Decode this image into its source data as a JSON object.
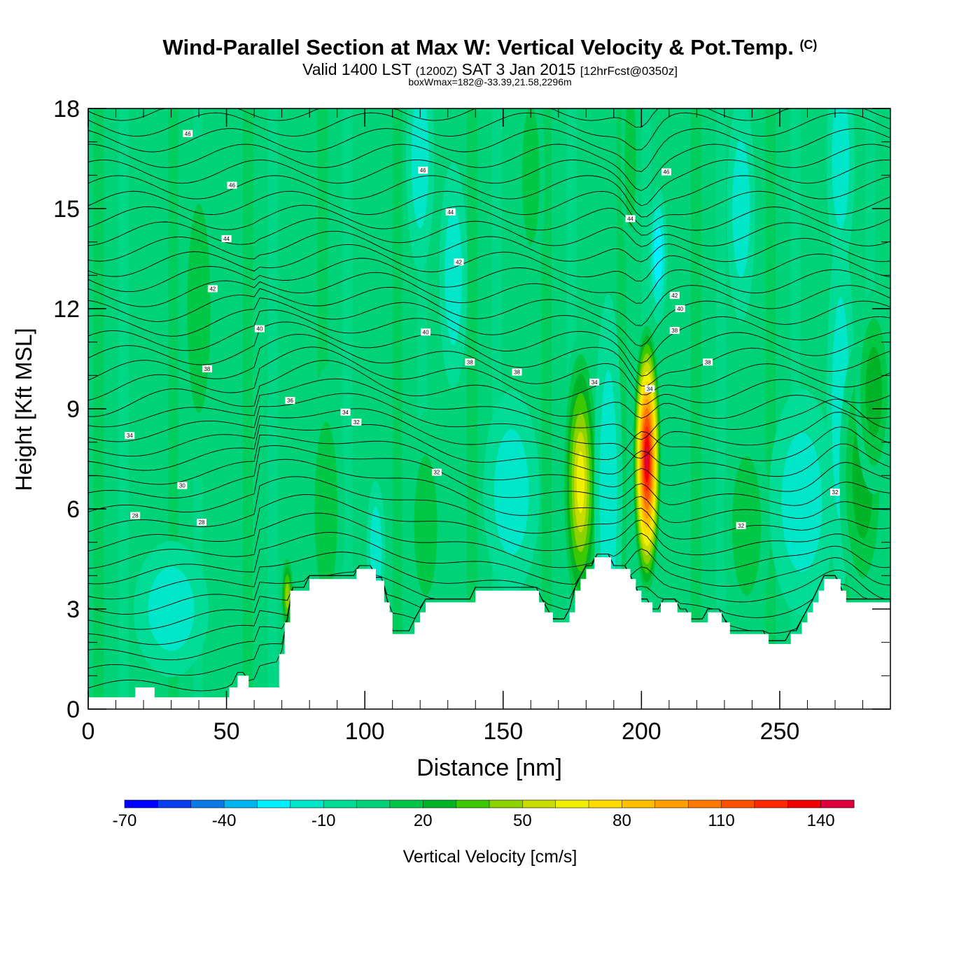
{
  "header": {
    "title": "Wind-Parallel Section at Max W: Vertical Velocity & Pot.Temp.",
    "copyright": "(C)",
    "valid_prefix": "Valid 1400 LST",
    "valid_utc": "(1200Z)",
    "valid_date": "SAT 3 Jan 2015",
    "forecast": "[12hrFcst@0350z]",
    "box_info": "boxWmax=182@-33.39,21.58,2296m"
  },
  "chart_data": {
    "type": "heatmap",
    "title": "Wind-Parallel Section at Max W: Vertical Velocity & Pot.Temp.",
    "xlabel": "Distance [nm]",
    "ylabel": "Height [Kft MSL]",
    "xlim": [
      0,
      290
    ],
    "ylim": [
      0,
      18
    ],
    "x_ticks": [
      0,
      50,
      100,
      150,
      200,
      250
    ],
    "y_ticks": [
      0,
      3,
      6,
      9,
      12,
      15,
      18
    ],
    "colorbar": {
      "label": "Vertical Velocity [cm/s]",
      "tick_labels": [
        "-70",
        "-40",
        "-10",
        "20",
        "50",
        "80",
        "110",
        "140"
      ],
      "levels": [
        -70,
        -60,
        -50,
        -40,
        -30,
        -20,
        -10,
        0,
        10,
        20,
        30,
        40,
        50,
        60,
        70,
        80,
        90,
        100,
        110,
        120,
        130,
        140,
        150
      ],
      "colors": [
        "#0000ff",
        "#0a3cf0",
        "#0a78e6",
        "#00b4f0",
        "#00f0ff",
        "#00e6c8",
        "#00dc96",
        "#00d278",
        "#00c846",
        "#00b428",
        "#3cc800",
        "#8cd200",
        "#c8dc00",
        "#f0f000",
        "#ffdc00",
        "#ffbe00",
        "#ffa000",
        "#ff7800",
        "#ff5000",
        "#ff2800",
        "#f00000",
        "#dc003c"
      ]
    },
    "background_level": 0,
    "terrain_kft": [
      [
        0,
        0.35
      ],
      [
        17,
        0.35
      ],
      [
        17,
        0.65
      ],
      [
        24,
        0.65
      ],
      [
        24,
        0.35
      ],
      [
        51,
        0.35
      ],
      [
        51,
        0.65
      ],
      [
        54,
        0.65
      ],
      [
        54,
        1.0
      ],
      [
        58,
        1.0
      ],
      [
        58,
        0.65
      ],
      [
        69,
        0.65
      ],
      [
        69,
        1.65
      ],
      [
        71,
        1.65
      ],
      [
        71,
        2.6
      ],
      [
        73,
        2.6
      ],
      [
        73,
        3.55
      ],
      [
        80,
        3.55
      ],
      [
        80,
        3.9
      ],
      [
        87,
        3.9
      ],
      [
        87,
        3.9
      ],
      [
        97,
        3.9
      ],
      [
        97,
        4.2
      ],
      [
        104,
        4.2
      ],
      [
        104,
        3.85
      ],
      [
        107,
        3.85
      ],
      [
        107,
        3.2
      ],
      [
        109,
        3.2
      ],
      [
        109,
        2.9
      ],
      [
        110,
        2.9
      ],
      [
        110,
        2.25
      ],
      [
        118,
        2.25
      ],
      [
        118,
        2.6
      ],
      [
        120,
        2.6
      ],
      [
        120,
        2.9
      ],
      [
        122,
        2.9
      ],
      [
        122,
        3.2
      ],
      [
        140,
        3.2
      ],
      [
        140,
        3.55
      ],
      [
        163,
        3.55
      ],
      [
        163,
        3.2
      ],
      [
        165,
        3.2
      ],
      [
        165,
        2.9
      ],
      [
        168,
        2.9
      ],
      [
        168,
        2.6
      ],
      [
        174,
        2.6
      ],
      [
        174,
        2.9
      ],
      [
        176,
        2.9
      ],
      [
        176,
        3.55
      ],
      [
        178,
        3.55
      ],
      [
        178,
        3.9
      ],
      [
        180,
        3.9
      ],
      [
        180,
        4.2
      ],
      [
        183,
        4.2
      ],
      [
        183,
        4.55
      ],
      [
        189,
        4.55
      ],
      [
        189,
        4.2
      ],
      [
        196,
        4.2
      ],
      [
        196,
        3.9
      ],
      [
        198,
        3.9
      ],
      [
        198,
        3.55
      ],
      [
        200,
        3.55
      ],
      [
        200,
        3.2
      ],
      [
        204,
        3.2
      ],
      [
        204,
        2.9
      ],
      [
        207,
        2.9
      ],
      [
        207,
        3.2
      ],
      [
        213,
        3.2
      ],
      [
        213,
        2.9
      ],
      [
        218,
        2.9
      ],
      [
        218,
        2.6
      ],
      [
        224,
        2.6
      ],
      [
        224,
        2.9
      ],
      [
        229,
        2.9
      ],
      [
        229,
        2.6
      ],
      [
        232,
        2.6
      ],
      [
        232,
        2.25
      ],
      [
        246,
        2.25
      ],
      [
        246,
        1.95
      ],
      [
        254,
        1.95
      ],
      [
        254,
        2.25
      ],
      [
        258,
        2.25
      ],
      [
        258,
        2.6
      ],
      [
        260,
        2.6
      ],
      [
        260,
        2.9
      ],
      [
        262,
        2.9
      ],
      [
        262,
        3.2
      ],
      [
        264,
        3.2
      ],
      [
        264,
        3.55
      ],
      [
        266,
        3.55
      ],
      [
        266,
        3.9
      ],
      [
        272,
        3.9
      ],
      [
        272,
        3.55
      ],
      [
        274,
        3.55
      ],
      [
        274,
        3.2
      ],
      [
        290,
        3.2
      ]
    ],
    "velocity_features": [
      {
        "x": 178,
        "y": 6.8,
        "sx": 4,
        "sy": 2.6,
        "value": 62
      },
      {
        "x": 202,
        "y": 7.5,
        "sx": 3.2,
        "sy": 2.5,
        "value": 150
      },
      {
        "x": 190,
        "y": 7.0,
        "sx": 1.8,
        "sy": 1.3,
        "value": -42
      },
      {
        "x": 270,
        "y": 7.5,
        "sx": 2.0,
        "sy": 1.4,
        "value": -50
      },
      {
        "x": 206,
        "y": 13.6,
        "sx": 2.0,
        "sy": 1.2,
        "value": -25
      },
      {
        "x": 72,
        "y": 3.4,
        "sx": 1.5,
        "sy": 0.8,
        "value": 45
      },
      {
        "x": 153,
        "y": 6.5,
        "sx": 6,
        "sy": 1.8,
        "value": -15
      },
      {
        "x": 258,
        "y": 6.2,
        "sx": 7,
        "sy": 2.0,
        "value": -15
      },
      {
        "x": 104,
        "y": 4.8,
        "sx": 2,
        "sy": 1.2,
        "value": -15
      },
      {
        "x": 188,
        "y": 6.5,
        "sx": 3,
        "sy": 3.5,
        "value": -15
      },
      {
        "x": 272,
        "y": 9.0,
        "sx": 3,
        "sy": 3.2,
        "value": -20
      },
      {
        "x": 122,
        "y": 5.5,
        "sx": 4,
        "sy": 2.0,
        "value": 20
      },
      {
        "x": 86,
        "y": 6.0,
        "sx": 4,
        "sy": 2.5,
        "value": 20
      },
      {
        "x": 280,
        "y": 7.0,
        "sx": 5,
        "sy": 2.5,
        "value": 28
      },
      {
        "x": 284,
        "y": 9.5,
        "sx": 4,
        "sy": 1.8,
        "value": 30
      },
      {
        "x": 238,
        "y": 5.5,
        "sx": 5,
        "sy": 2.0,
        "value": 15
      },
      {
        "x": 120,
        "y": 16.5,
        "sx": 3,
        "sy": 2.0,
        "value": -15
      },
      {
        "x": 272,
        "y": 16.5,
        "sx": 3,
        "sy": 2.0,
        "value": -15
      },
      {
        "x": 132,
        "y": 13.0,
        "sx": 3,
        "sy": 2.0,
        "value": -12
      },
      {
        "x": 236,
        "y": 15.0,
        "sx": 3,
        "sy": 2.0,
        "value": -12
      },
      {
        "x": 30,
        "y": 3.0,
        "sx": 8,
        "sy": 1.2,
        "value": -12
      },
      {
        "x": 196,
        "y": 16.5,
        "sx": 2,
        "sy": 2.0,
        "value": 15
      },
      {
        "x": 160,
        "y": 16.0,
        "sx": 3,
        "sy": 2.0,
        "value": 15
      },
      {
        "x": 40,
        "y": 12.0,
        "sx": 4,
        "sy": 3.0,
        "value": 12
      }
    ],
    "contour_labels": [
      {
        "text": "46",
        "x": 36,
        "y": 17.25
      },
      {
        "text": "46",
        "x": 121,
        "y": 16.15
      },
      {
        "text": "46",
        "x": 209,
        "y": 16.1
      },
      {
        "text": "46",
        "x": 52,
        "y": 15.7
      },
      {
        "text": "44",
        "x": 131,
        "y": 14.9
      },
      {
        "text": "44",
        "x": 196,
        "y": 14.7
      },
      {
        "text": "44",
        "x": 50,
        "y": 14.1
      },
      {
        "text": "42",
        "x": 134,
        "y": 13.4
      },
      {
        "text": "42",
        "x": 45,
        "y": 12.6
      },
      {
        "text": "42",
        "x": 212,
        "y": 12.4
      },
      {
        "text": "40",
        "x": 214,
        "y": 12.0
      },
      {
        "text": "40",
        "x": 62,
        "y": 11.4
      },
      {
        "text": "40",
        "x": 122,
        "y": 11.3
      },
      {
        "text": "38",
        "x": 212,
        "y": 11.35
      },
      {
        "text": "38",
        "x": 43,
        "y": 10.2
      },
      {
        "text": "38",
        "x": 138,
        "y": 10.4
      },
      {
        "text": "38",
        "x": 155,
        "y": 10.1
      },
      {
        "text": "38",
        "x": 224,
        "y": 10.4
      },
      {
        "text": "36",
        "x": 73,
        "y": 9.25
      },
      {
        "text": "34",
        "x": 93,
        "y": 8.9
      },
      {
        "text": "34",
        "x": 183,
        "y": 9.8
      },
      {
        "text": "34",
        "x": 203,
        "y": 9.6
      },
      {
        "text": "34",
        "x": 15,
        "y": 8.2
      },
      {
        "text": "32",
        "x": 97,
        "y": 8.6
      },
      {
        "text": "32",
        "x": 126,
        "y": 7.1
      },
      {
        "text": "32",
        "x": 270,
        "y": 6.5
      },
      {
        "text": "32",
        "x": 236,
        "y": 5.5
      },
      {
        "text": "30",
        "x": 34,
        "y": 6.7
      },
      {
        "text": "28",
        "x": 17,
        "y": 5.8
      },
      {
        "text": "28",
        "x": 41,
        "y": 5.6
      }
    ]
  }
}
